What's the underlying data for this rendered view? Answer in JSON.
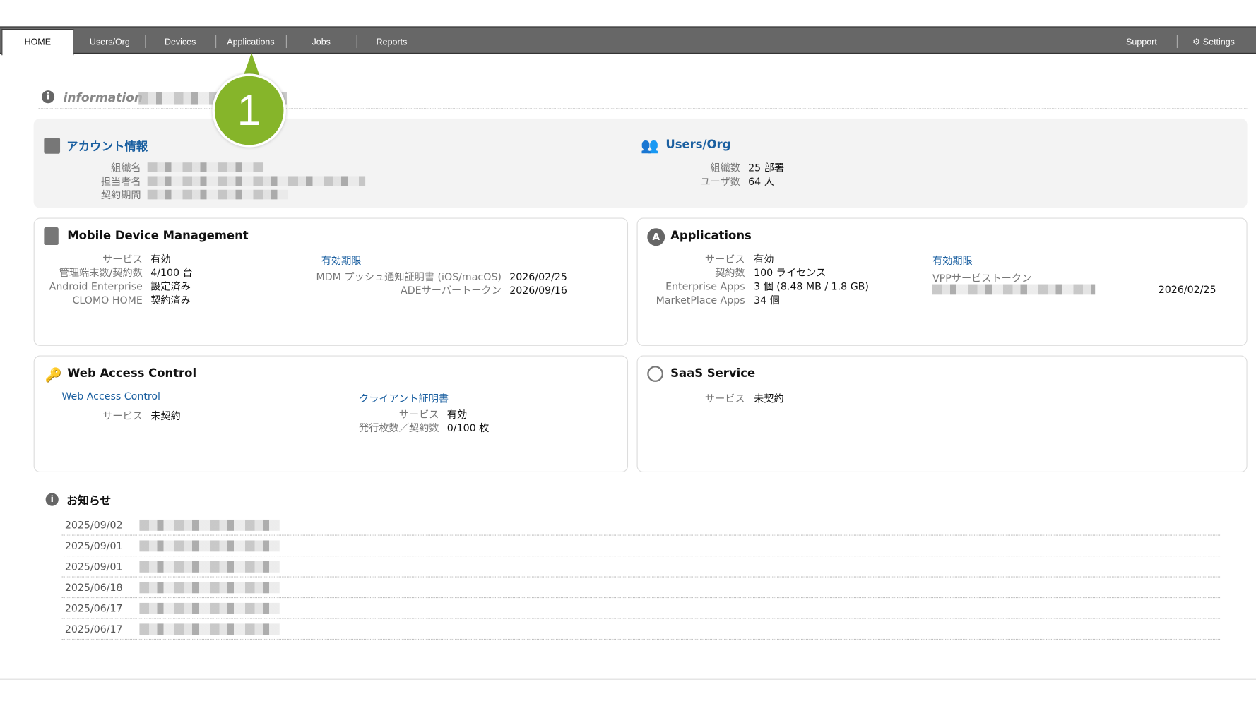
{
  "nav": {
    "tabs": [
      "HOME",
      "Users/Org",
      "Devices",
      "Applications",
      "Jobs",
      "Reports"
    ],
    "active": "HOME",
    "right": {
      "support": "Support",
      "settings": "Settings"
    }
  },
  "annotation": {
    "number": "1",
    "color": "#86b52a"
  },
  "information": {
    "title": "information"
  },
  "account": {
    "title": "アカウント情報",
    "labels": [
      "組織名",
      "担当者名",
      "契約期間"
    ]
  },
  "users_org": {
    "title": "Users/Org",
    "rows": [
      {
        "label": "組織数",
        "value": "25 部署"
      },
      {
        "label": "ユーザ数",
        "value": "64 人"
      }
    ]
  },
  "mdm": {
    "title": "Mobile Device Management",
    "rows": [
      {
        "label": "サービス",
        "value": "有効"
      },
      {
        "label": "管理端末数/契約数",
        "value": "4/100 台"
      },
      {
        "label": "Android Enterprise",
        "value": "設定済み"
      },
      {
        "label": "CLOMO HOME",
        "value": "契約済み"
      }
    ],
    "expiry_title": "有効期限",
    "expiry": [
      {
        "label": "MDM プッシュ通知証明書 (iOS/macOS)",
        "value": "2026/02/25"
      },
      {
        "label": "ADEサーバートークン",
        "value": "2026/09/16"
      }
    ]
  },
  "apps": {
    "title": "Applications",
    "rows": [
      {
        "label": "サービス",
        "value": "有効"
      },
      {
        "label": "契約数",
        "value": "100 ライセンス"
      },
      {
        "label": "Enterprise Apps",
        "value": "3 個 (8.48 MB / 1.8 GB)"
      },
      {
        "label": "MarketPlace Apps",
        "value": "34 個"
      }
    ],
    "expiry_title": "有効期限",
    "vpp_label": "VPPサービストークン",
    "vpp_date": "2026/02/25"
  },
  "wac": {
    "title": "Web Access Control",
    "sub_title": "Web Access Control",
    "rows": [
      {
        "label": "サービス",
        "value": "未契約"
      }
    ],
    "cert_title": "クライアント証明書",
    "cert_rows": [
      {
        "label": "サービス",
        "value": "有効"
      },
      {
        "label": "発行枚数／契約数",
        "value": "0/100 枚"
      }
    ]
  },
  "saas": {
    "title": "SaaS Service",
    "rows": [
      {
        "label": "サービス",
        "value": "未契約"
      }
    ]
  },
  "news": {
    "title": "お知らせ",
    "dates": [
      "2025/09/02",
      "2025/09/01",
      "2025/09/01",
      "2025/06/18",
      "2025/06/17",
      "2025/06/17"
    ]
  }
}
